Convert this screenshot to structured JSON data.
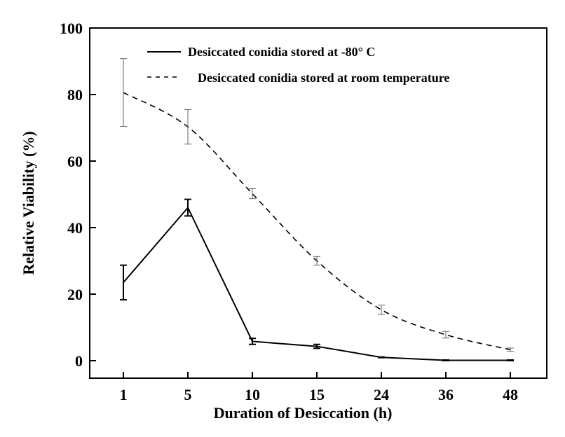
{
  "chart_data": {
    "type": "line",
    "title": "",
    "xlabel": "Duration of Desiccation (h)",
    "ylabel": "Relative Viability (%)",
    "categories": [
      "1",
      "5",
      "10",
      "15",
      "24",
      "36",
      "48"
    ],
    "ylim": [
      0,
      100
    ],
    "yticks": [
      0,
      20,
      40,
      60,
      80,
      100
    ],
    "grid": false,
    "legend_position": "top-right",
    "series": [
      {
        "name": "Desiccated conidia stored at -80° C",
        "line_style": "solid",
        "values": [
          23.5,
          46,
          5.8,
          4.3,
          1.0,
          0.1,
          0.1
        ],
        "errors": [
          5.2,
          2.5,
          0.9,
          0.6,
          0.1,
          0.1,
          0.1
        ]
      },
      {
        "name": "Desiccated conidia stored at room temperature",
        "line_style": "dashed",
        "values": [
          80.6,
          70.3,
          50.2,
          30.0,
          15.3,
          7.8,
          3.3
        ],
        "errors": [
          10.2,
          5.2,
          1.5,
          1.3,
          1.4,
          1.0,
          0.5
        ]
      }
    ],
    "colors": {
      "axis": "#000000",
      "series_line": "#000000",
      "error_bar_light": "#666666"
    }
  }
}
